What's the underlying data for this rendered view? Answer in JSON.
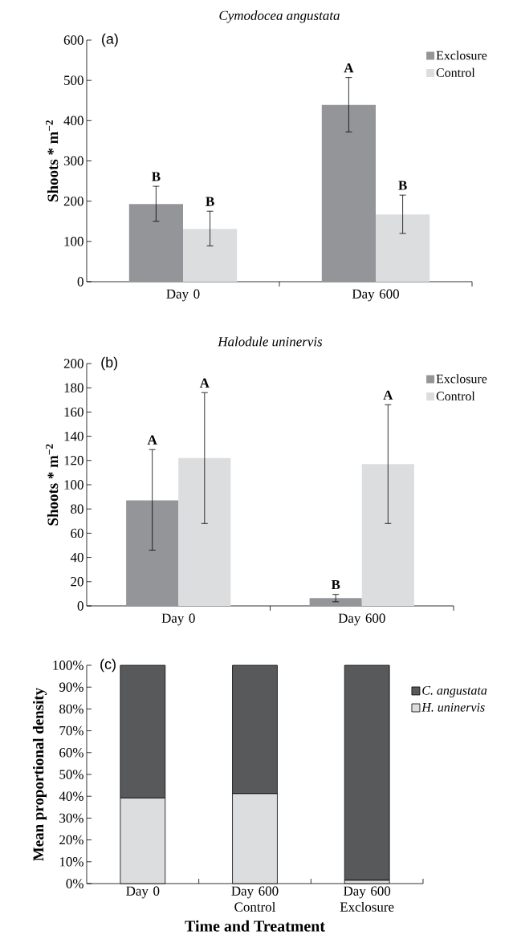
{
  "chart_data": [
    {
      "type": "bar",
      "title": "Cymodocea angustata",
      "ylabel": "Shoots * m$^{−2}$",
      "categories": [
        "Day 0",
        "Day 600"
      ],
      "series": [
        {
          "name": "Exclosure",
          "color": "#939598",
          "values": [
            193,
            439
          ],
          "errors": [
            [
              150,
              237
            ],
            [
              372,
              507
            ]
          ]
        },
        {
          "name": "Control",
          "color": "#dcdddf",
          "values": [
            131,
            167
          ],
          "errors": [
            [
              89,
              175
            ],
            [
              120,
              215
            ]
          ]
        }
      ],
      "ylim": [
        0,
        600
      ],
      "yticks": [
        0,
        100,
        200,
        300,
        400,
        500,
        600
      ],
      "legend": "top right",
      "annotations": [
        "(a)",
        "B",
        "B",
        "A",
        "B"
      ]
    },
    {
      "type": "bar",
      "title": "Halodule uninervis",
      "ylabel": "Shoots * m$^{−2}$",
      "categories": [
        "Day 0",
        "Day 600"
      ],
      "series": [
        {
          "name": "Exclosure",
          "color": "#939598",
          "values": [
            87,
            6.4
          ],
          "errors": [
            [
              46,
              129
            ],
            [
              3.4,
              9.5
            ]
          ]
        },
        {
          "name": "Control",
          "color": "#dcdddf",
          "values": [
            122,
            117
          ],
          "errors": [
            [
              68,
              176
            ],
            [
              68,
              166
            ]
          ]
        }
      ],
      "ylim": [
        0,
        200
      ],
      "yticks": [
        0,
        20,
        40,
        60,
        80,
        100,
        120,
        140,
        160,
        180,
        200
      ],
      "legend": "top right",
      "annotations": [
        "(b)",
        "A",
        "A",
        "B",
        "A"
      ]
    },
    {
      "type": "bar",
      "stacked": true,
      "ylabel": "Mean proportional density",
      "xlabel": "Time and Treatment",
      "categories": [
        "Day 0",
        "Day 600 Control",
        "Day 600 Exclosure"
      ],
      "series": [
        {
          "name": "H. uninervis",
          "color": "#dcdddf",
          "values": [
            39.2,
            41.2,
            1.5
          ]
        },
        {
          "name": "C. angustata",
          "color": "#58595b",
          "values": [
            60.8,
            58.8,
            98.5
          ]
        }
      ],
      "ylim": [
        0,
        100
      ],
      "yticks": [
        {
          "value": 0,
          "label": "0%"
        },
        {
          "value": 10,
          "label": "10%"
        },
        {
          "value": 20,
          "label": "20%"
        },
        {
          "value": 30,
          "label": "30%"
        },
        {
          "value": 40,
          "label": "40%"
        },
        {
          "value": 50,
          "label": "50%"
        },
        {
          "value": 60,
          "label": "60%"
        },
        {
          "value": 70,
          "label": "70%"
        },
        {
          "value": 80,
          "label": "80%"
        },
        {
          "value": 90,
          "label": "90%"
        },
        {
          "value": 100,
          "label": "100%"
        }
      ],
      "legend": "right",
      "annotations": [
        "(c)"
      ]
    }
  ]
}
